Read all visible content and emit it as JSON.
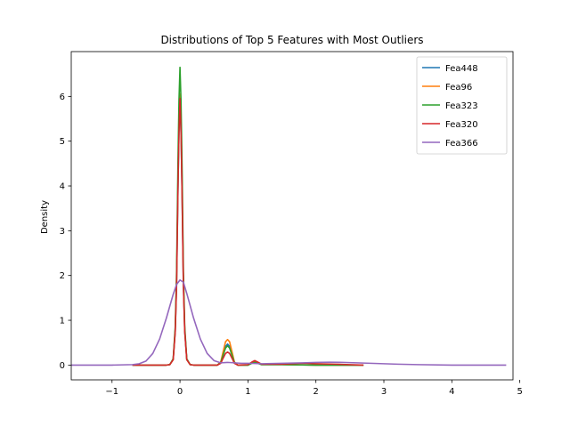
{
  "chart_data": {
    "type": "line",
    "title": "Distributions of Top 5 Features with Most Outliers",
    "xlabel": "",
    "ylabel": "Density",
    "xlim": [
      -1.6,
      4.9
    ],
    "ylim": [
      -0.33,
      7.0
    ],
    "xticks": [
      -1,
      0,
      1,
      2,
      3,
      4,
      5
    ],
    "yticks": [
      0,
      1,
      2,
      3,
      4,
      5,
      6
    ],
    "grid": false,
    "legend_position": "top-right",
    "series": [
      {
        "name": "Fea448",
        "color": "#1f77b4",
        "points": [
          [
            -0.7,
            0
          ],
          [
            -0.3,
            0
          ],
          [
            -0.2,
            0
          ],
          [
            -0.15,
            0.01
          ],
          [
            -0.1,
            0.12
          ],
          [
            -0.07,
            0.75
          ],
          [
            -0.05,
            1.8
          ],
          [
            -0.03,
            3.9
          ],
          [
            -0.015,
            5.2
          ],
          [
            0,
            5.9
          ],
          [
            0.015,
            5.2
          ],
          [
            0.03,
            3.9
          ],
          [
            0.05,
            1.8
          ],
          [
            0.07,
            0.75
          ],
          [
            0.1,
            0.12
          ],
          [
            0.15,
            0.01
          ],
          [
            0.2,
            0
          ],
          [
            0.55,
            0
          ],
          [
            0.6,
            0.06
          ],
          [
            0.63,
            0.22
          ],
          [
            0.67,
            0.42
          ],
          [
            0.7,
            0.47
          ],
          [
            0.73,
            0.42
          ],
          [
            0.77,
            0.22
          ],
          [
            0.8,
            0.06
          ],
          [
            0.85,
            0
          ],
          [
            1.0,
            0
          ],
          [
            1.06,
            0.05
          ],
          [
            1.1,
            0.08
          ],
          [
            1.14,
            0.05
          ],
          [
            1.2,
            0.01
          ],
          [
            1.5,
            0.01
          ],
          [
            2.0,
            0
          ],
          [
            2.7,
            0
          ]
        ]
      },
      {
        "name": "Fea96",
        "color": "#ff7f0e",
        "points": [
          [
            -0.7,
            0
          ],
          [
            -0.3,
            0
          ],
          [
            -0.2,
            0
          ],
          [
            -0.15,
            0.01
          ],
          [
            -0.1,
            0.12
          ],
          [
            -0.07,
            0.78
          ],
          [
            -0.05,
            1.9
          ],
          [
            -0.03,
            4.1
          ],
          [
            -0.015,
            5.4
          ],
          [
            0,
            6.05
          ],
          [
            0.015,
            5.4
          ],
          [
            0.03,
            4.1
          ],
          [
            0.05,
            1.9
          ],
          [
            0.07,
            0.78
          ],
          [
            0.1,
            0.12
          ],
          [
            0.15,
            0.01
          ],
          [
            0.2,
            0
          ],
          [
            0.55,
            0
          ],
          [
            0.6,
            0.07
          ],
          [
            0.63,
            0.27
          ],
          [
            0.67,
            0.52
          ],
          [
            0.7,
            0.57
          ],
          [
            0.73,
            0.52
          ],
          [
            0.77,
            0.27
          ],
          [
            0.8,
            0.07
          ],
          [
            0.85,
            0
          ],
          [
            1.0,
            0
          ],
          [
            1.06,
            0.05
          ],
          [
            1.1,
            0.08
          ],
          [
            1.14,
            0.05
          ],
          [
            1.2,
            0.01
          ],
          [
            1.5,
            0.01
          ],
          [
            2.0,
            0
          ],
          [
            2.7,
            0
          ]
        ]
      },
      {
        "name": "Fea323",
        "color": "#2ca02c",
        "points": [
          [
            -0.7,
            0
          ],
          [
            -0.3,
            0
          ],
          [
            -0.2,
            0
          ],
          [
            -0.15,
            0.01
          ],
          [
            -0.1,
            0.14
          ],
          [
            -0.07,
            0.85
          ],
          [
            -0.05,
            2.1
          ],
          [
            -0.03,
            4.5
          ],
          [
            -0.015,
            5.9
          ],
          [
            0,
            6.65
          ],
          [
            0.015,
            5.9
          ],
          [
            0.03,
            4.5
          ],
          [
            0.05,
            2.1
          ],
          [
            0.07,
            0.85
          ],
          [
            0.1,
            0.14
          ],
          [
            0.15,
            0.01
          ],
          [
            0.2,
            0
          ],
          [
            0.55,
            0
          ],
          [
            0.6,
            0.06
          ],
          [
            0.63,
            0.2
          ],
          [
            0.67,
            0.38
          ],
          [
            0.7,
            0.43
          ],
          [
            0.73,
            0.38
          ],
          [
            0.77,
            0.2
          ],
          [
            0.8,
            0.06
          ],
          [
            0.85,
            0
          ],
          [
            1.0,
            0
          ],
          [
            1.06,
            0.04
          ],
          [
            1.1,
            0.06
          ],
          [
            1.14,
            0.04
          ],
          [
            1.2,
            0.01
          ],
          [
            1.5,
            0.01
          ],
          [
            2.0,
            0
          ],
          [
            2.7,
            0
          ]
        ]
      },
      {
        "name": "Fea320",
        "color": "#d62728",
        "points": [
          [
            -0.7,
            0
          ],
          [
            -0.3,
            0
          ],
          [
            -0.2,
            0
          ],
          [
            -0.15,
            0.01
          ],
          [
            -0.1,
            0.12
          ],
          [
            -0.07,
            0.75
          ],
          [
            -0.05,
            1.8
          ],
          [
            -0.03,
            3.9
          ],
          [
            -0.015,
            5.2
          ],
          [
            0,
            5.95
          ],
          [
            0.015,
            5.2
          ],
          [
            0.03,
            3.9
          ],
          [
            0.05,
            1.8
          ],
          [
            0.07,
            0.75
          ],
          [
            0.1,
            0.12
          ],
          [
            0.15,
            0.01
          ],
          [
            0.2,
            0
          ],
          [
            0.55,
            0
          ],
          [
            0.6,
            0.04
          ],
          [
            0.63,
            0.14
          ],
          [
            0.67,
            0.26
          ],
          [
            0.7,
            0.29
          ],
          [
            0.73,
            0.26
          ],
          [
            0.77,
            0.14
          ],
          [
            0.8,
            0.04
          ],
          [
            0.85,
            0
          ],
          [
            1.0,
            0.01
          ],
          [
            1.06,
            0.07
          ],
          [
            1.1,
            0.1
          ],
          [
            1.14,
            0.07
          ],
          [
            1.2,
            0.02
          ],
          [
            1.5,
            0.02
          ],
          [
            1.8,
            0.04
          ],
          [
            2.0,
            0.03
          ],
          [
            2.3,
            0.02
          ],
          [
            2.7,
            0
          ]
        ]
      },
      {
        "name": "Fea366",
        "color": "#9467bd",
        "points": [
          [
            -1.6,
            0
          ],
          [
            -1.0,
            0
          ],
          [
            -0.7,
            0.01
          ],
          [
            -0.6,
            0.03
          ],
          [
            -0.5,
            0.09
          ],
          [
            -0.4,
            0.26
          ],
          [
            -0.3,
            0.58
          ],
          [
            -0.2,
            1.05
          ],
          [
            -0.1,
            1.58
          ],
          [
            -0.05,
            1.8
          ],
          [
            0,
            1.9
          ],
          [
            0.05,
            1.85
          ],
          [
            0.1,
            1.6
          ],
          [
            0.2,
            1.05
          ],
          [
            0.3,
            0.58
          ],
          [
            0.4,
            0.26
          ],
          [
            0.5,
            0.1
          ],
          [
            0.6,
            0.05
          ],
          [
            0.7,
            0.06
          ],
          [
            0.8,
            0.05
          ],
          [
            0.9,
            0.04
          ],
          [
            1.0,
            0.04
          ],
          [
            1.2,
            0.03
          ],
          [
            1.5,
            0.04
          ],
          [
            1.8,
            0.05
          ],
          [
            2.0,
            0.06
          ],
          [
            2.2,
            0.065
          ],
          [
            2.4,
            0.06
          ],
          [
            2.6,
            0.05
          ],
          [
            2.8,
            0.04
          ],
          [
            3.0,
            0.03
          ],
          [
            3.2,
            0.02
          ],
          [
            3.5,
            0.01
          ],
          [
            4.0,
            0
          ],
          [
            4.8,
            0
          ]
        ]
      }
    ]
  }
}
